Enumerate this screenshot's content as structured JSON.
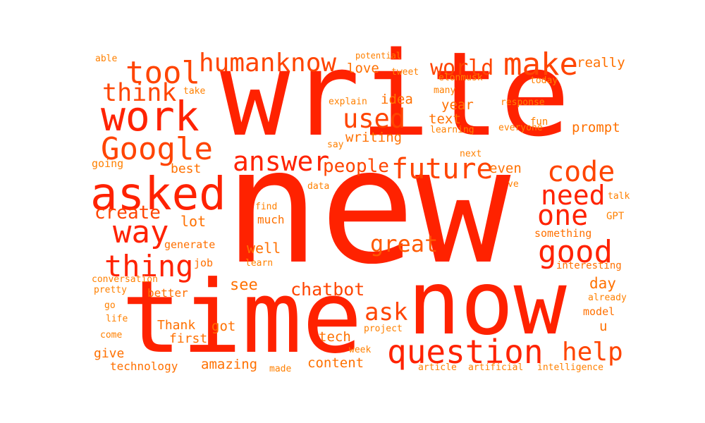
{
  "word_cloud": {
    "palette": [
      "#ff2200",
      "#ff4400",
      "#ff5a00",
      "#ff7000",
      "#ff8000"
    ],
    "words": {
      "new": "new",
      "write": "write",
      "time": "time",
      "now": "now",
      "asked": "asked",
      "work": "work",
      "question": "question",
      "google": "Google",
      "tool": "tool",
      "humanknow": "humanknow",
      "make": "make",
      "code": "code",
      "good": "good",
      "future": "future",
      "answer": "answer",
      "thing": "thing",
      "way": "way",
      "think": "think",
      "help": "help",
      "need": "need",
      "one": "one",
      "ask": "ask",
      "used": "used",
      "world": "world",
      "great": "great",
      "people": "people",
      "create": "create",
      "chatbot": "chatbot",
      "really": "really",
      "love": "love",
      "idea": "idea",
      "text": "text",
      "even": "even",
      "year": "year",
      "writing": "writing",
      "prompt": "prompt",
      "day": "day",
      "see": "see",
      "well": "well",
      "content": "content",
      "amazing": "amazing",
      "lot": "lot",
      "best": "best",
      "tech": "tech",
      "first": "first",
      "thank": "Thank",
      "got": "got",
      "give": "give",
      "technology": "technology",
      "u": "u",
      "much": "much",
      "better": "better",
      "generate": "generate",
      "job": "job",
      "something": "something",
      "interesting": "interesting",
      "model": "model",
      "fun": "fun",
      "everyone": "everyone",
      "learning": "learning",
      "response": "response",
      "elonmusk": "elonmusk",
      "tweet": "tweet",
      "potential": "potential",
      "able": "able",
      "take": "take",
      "many": "many",
      "today": "today",
      "explain": "explain",
      "say": "say",
      "next": "next",
      "going": "going",
      "data": "data",
      "ve": "ve",
      "talk": "talk",
      "gpt": "GPT",
      "find": "find",
      "learn": "learn",
      "conversation": "conversation",
      "pretty": "pretty",
      "go": "go",
      "life": "life",
      "come": "come",
      "project": "project",
      "week": "week",
      "made": "made",
      "article": "article",
      "artificial": "artificial",
      "intelligence": "intelligence",
      "already": "already"
    }
  }
}
